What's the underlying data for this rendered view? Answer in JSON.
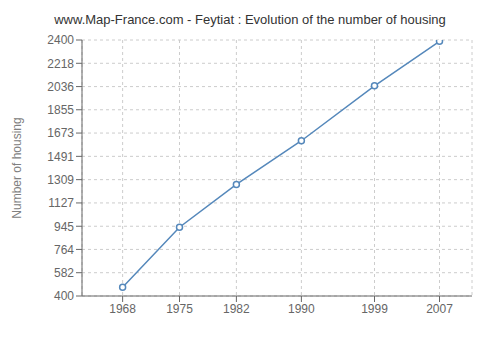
{
  "chart_data": {
    "type": "line",
    "title": "www.Map-France.com - Feytiat : Evolution of the number of housing",
    "ylabel": "Number of housing",
    "x": [
      1968,
      1975,
      1982,
      1990,
      1999,
      2007
    ],
    "values": [
      468,
      937,
      1272,
      1613,
      2042,
      2390
    ],
    "color": "#5588bb",
    "marker": "circle",
    "xlim": [
      1963,
      2011
    ],
    "xticks": [
      1968,
      1975,
      1982,
      1990,
      1999,
      2007
    ],
    "ylim": [
      400,
      2400
    ],
    "yticks": [
      400,
      582,
      764,
      945,
      1127,
      1309,
      1491,
      1673,
      1855,
      2036,
      2218,
      2400
    ],
    "grid": true
  }
}
